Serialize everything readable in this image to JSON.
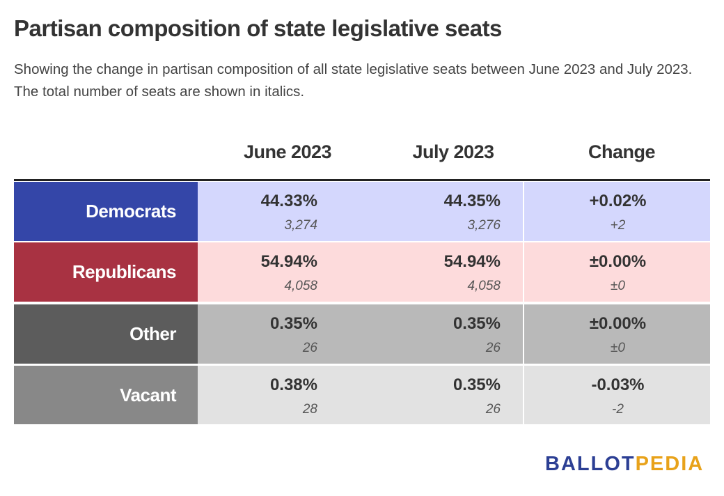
{
  "header": {
    "title": "Partisan composition of state legislative seats",
    "subtitle": "Showing the change in partisan composition of all state legislative seats between June 2023 and July 2023. The total number of seats are shown in italics."
  },
  "table": {
    "columns": [
      "June 2023",
      "July 2023",
      "Change"
    ],
    "rows": [
      {
        "label": "Democrats",
        "cells": [
          [
            "44.33%",
            "3,274"
          ],
          [
            "44.35%",
            "3,276"
          ],
          [
            "+0.02%",
            "+2"
          ]
        ]
      },
      {
        "label": "Republicans",
        "cells": [
          [
            "54.94%",
            "4,058"
          ],
          [
            "54.94%",
            "4,058"
          ],
          [
            "±0.00%",
            "±0"
          ]
        ]
      },
      {
        "label": "Other",
        "cells": [
          [
            "0.35%",
            "26"
          ],
          [
            "0.35%",
            "26"
          ],
          [
            "±0.00%",
            "±0"
          ]
        ]
      },
      {
        "label": "Vacant",
        "cells": [
          [
            "0.38%",
            "28"
          ],
          [
            "0.35%",
            "26"
          ],
          [
            "-0.03%",
            "-2"
          ]
        ]
      }
    ]
  },
  "logo": [
    "BALLOT",
    "PEDIA"
  ]
}
